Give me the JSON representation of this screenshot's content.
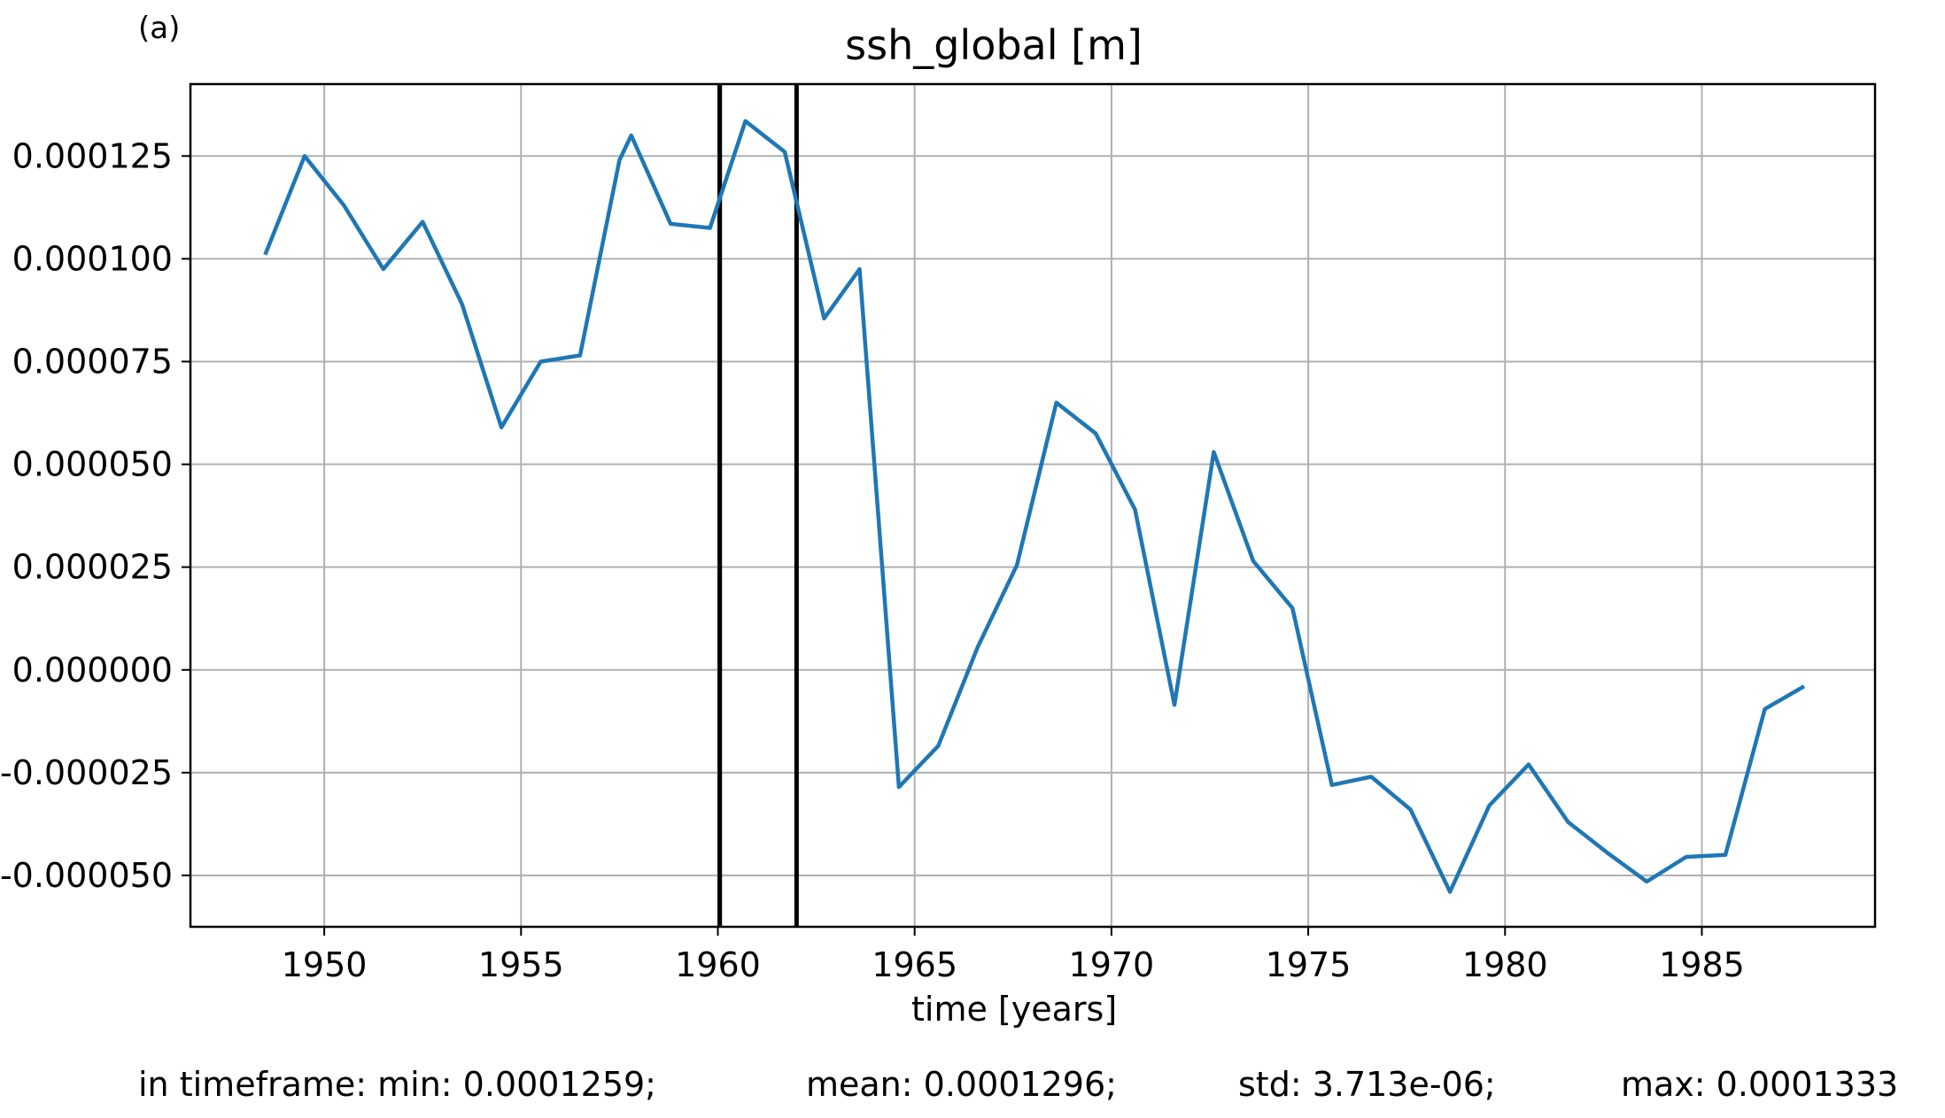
{
  "chart_data": {
    "type": "line",
    "panel_label": "(a)",
    "title": "ssh_global [m]",
    "xlabel": "time [years]",
    "ylabel": "",
    "xlim": [
      1946.6,
      1989.4
    ],
    "ylim": [
      -6.25e-05,
      0.0001425
    ],
    "grid": true,
    "xticks": [
      1950,
      1955,
      1960,
      1965,
      1970,
      1975,
      1980,
      1985
    ],
    "yticks": [
      -5e-05,
      -2.5e-05,
      0.0,
      2.5e-05,
      5e-05,
      7.5e-05,
      0.0001,
      0.000125
    ],
    "ytick_labels": [
      "-0.000050",
      "-0.000025",
      "0.000000",
      "0.000025",
      "0.000050",
      "0.000075",
      "0.000100",
      "0.000125"
    ],
    "vlines": [
      1960.05,
      1962.0
    ],
    "series": [
      {
        "color": "#1f77b4",
        "x": [
          1948.5,
          1949.5,
          1950.5,
          1951.5,
          1952.5,
          1953.5,
          1954.5,
          1955.5,
          1956.5,
          1957.5,
          1957.8,
          1958.8,
          1959.8,
          1960.7,
          1961.7,
          1962.7,
          1963.6,
          1964.6,
          1965.6,
          1966.6,
          1967.6,
          1968.6,
          1969.6,
          1970.6,
          1971.6,
          1972.6,
          1973.6,
          1974.6,
          1975.6,
          1976.6,
          1977.6,
          1978.6,
          1979.6,
          1980.6,
          1981.6,
          1982.6,
          1983.6,
          1984.6,
          1985.6,
          1986.6,
          1987.6
        ],
        "y": [
          0.000101,
          0.000125,
          0.000113,
          9.75e-05,
          0.000109,
          8.9e-05,
          5.9e-05,
          7.5e-05,
          7.65e-05,
          0.000124,
          0.00013,
          0.0001085,
          0.0001075,
          0.0001335,
          0.000126,
          8.55e-05,
          9.75e-05,
          -2.85e-05,
          -1.85e-05,
          5.5e-06,
          2.55e-05,
          6.5e-05,
          5.75e-05,
          3.9e-05,
          -8.5e-06,
          5.3e-05,
          2.65e-05,
          1.5e-05,
          -2.8e-05,
          -2.6e-05,
          -3.4e-05,
          -5.4e-05,
          -3.3e-05,
          -2.3e-05,
          -3.7e-05,
          -4.45e-05,
          -5.15e-05,
          -4.55e-05,
          -4.5e-05,
          -9.5e-06,
          -4e-06
        ]
      }
    ]
  },
  "footer": {
    "min": "in timeframe: min: 0.0001259;",
    "mean": "mean: 0.0001296;",
    "std": "std: 3.713e-06;",
    "max": "max: 0.0001333"
  }
}
